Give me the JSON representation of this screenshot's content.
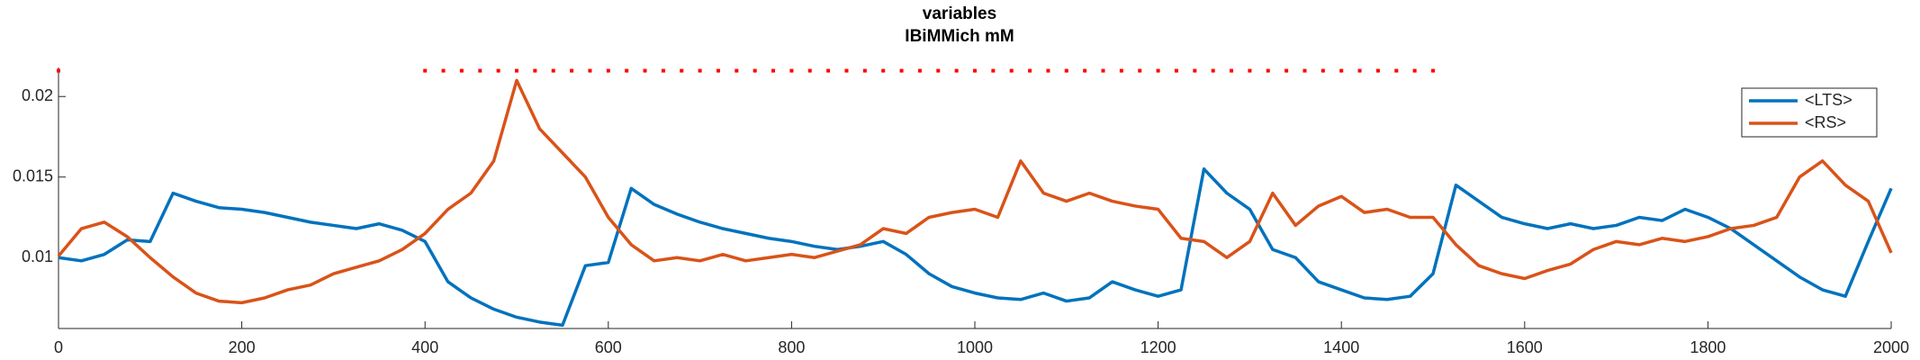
{
  "chart_data": {
    "type": "line",
    "title": "variables",
    "subtitle": "IBiMMich mM",
    "x": [
      0,
      25,
      50,
      75,
      100,
      125,
      150,
      175,
      200,
      225,
      250,
      275,
      300,
      325,
      350,
      375,
      400,
      425,
      450,
      475,
      500,
      525,
      550,
      575,
      600,
      625,
      650,
      675,
      700,
      725,
      750,
      775,
      800,
      825,
      850,
      875,
      900,
      925,
      950,
      975,
      1000,
      1025,
      1050,
      1075,
      1100,
      1125,
      1150,
      1175,
      1200,
      1225,
      1250,
      1275,
      1300,
      1325,
      1350,
      1375,
      1400,
      1425,
      1450,
      1475,
      1500,
      1525,
      1550,
      1575,
      1600,
      1625,
      1650,
      1675,
      1700,
      1725,
      1750,
      1775,
      1800,
      1825,
      1850,
      1875,
      1900,
      1925,
      1950,
      1975,
      2000
    ],
    "series": [
      {
        "name": "<LTS>",
        "color": "#0072bd",
        "values": [
          0.01,
          0.0098,
          0.0102,
          0.0111,
          0.011,
          0.014,
          0.0135,
          0.0131,
          0.013,
          0.0128,
          0.0125,
          0.0122,
          0.012,
          0.0118,
          0.0121,
          0.0117,
          0.011,
          0.0085,
          0.0075,
          0.0068,
          0.0063,
          0.006,
          0.0058,
          0.0095,
          0.0097,
          0.0143,
          0.0133,
          0.0127,
          0.0122,
          0.0118,
          0.0115,
          0.0112,
          0.011,
          0.0107,
          0.0105,
          0.0107,
          0.011,
          0.0102,
          0.009,
          0.0082,
          0.0078,
          0.0075,
          0.0074,
          0.0078,
          0.0073,
          0.0075,
          0.0085,
          0.008,
          0.0076,
          0.008,
          0.0155,
          0.014,
          0.013,
          0.0105,
          0.01,
          0.0085,
          0.008,
          0.0075,
          0.0074,
          0.0076,
          0.009,
          0.0145,
          0.0135,
          0.0125,
          0.0121,
          0.0118,
          0.0121,
          0.0118,
          0.012,
          0.0125,
          0.0123,
          0.013,
          0.0125,
          0.0118,
          0.0108,
          0.0098,
          0.0088,
          0.008,
          0.0076,
          0.011,
          0.0143
        ]
      },
      {
        "name": "<RS>",
        "color": "#d95319",
        "values": [
          0.0101,
          0.0118,
          0.0122,
          0.0113,
          0.01,
          0.0088,
          0.0078,
          0.0073,
          0.0072,
          0.0075,
          0.008,
          0.0083,
          0.009,
          0.0094,
          0.0098,
          0.0105,
          0.0115,
          0.013,
          0.014,
          0.016,
          0.021,
          0.018,
          0.0165,
          0.015,
          0.0125,
          0.0108,
          0.0098,
          0.01,
          0.0098,
          0.0102,
          0.0098,
          0.01,
          0.0102,
          0.01,
          0.0104,
          0.0108,
          0.0118,
          0.0115,
          0.0125,
          0.0128,
          0.013,
          0.0125,
          0.016,
          0.014,
          0.0135,
          0.014,
          0.0135,
          0.0132,
          0.013,
          0.0112,
          0.011,
          0.01,
          0.011,
          0.014,
          0.012,
          0.0132,
          0.0138,
          0.0128,
          0.013,
          0.0125,
          0.0125,
          0.0108,
          0.0095,
          0.009,
          0.0087,
          0.0092,
          0.0096,
          0.0105,
          0.011,
          0.0108,
          0.0112,
          0.011,
          0.0113,
          0.0118,
          0.012,
          0.0125,
          0.015,
          0.016,
          0.0145,
          0.0135,
          0.0103
        ]
      }
    ],
    "markers": {
      "color": "#ff0000",
      "x": [
        0,
        400,
        420,
        440,
        460,
        480,
        500,
        520,
        540,
        560,
        580,
        600,
        620,
        640,
        660,
        680,
        700,
        720,
        740,
        760,
        780,
        800,
        820,
        840,
        860,
        880,
        900,
        920,
        940,
        960,
        980,
        1000,
        1020,
        1040,
        1060,
        1080,
        1100,
        1120,
        1140,
        1160,
        1180,
        1200,
        1220,
        1240,
        1260,
        1280,
        1300,
        1320,
        1340,
        1360,
        1380,
        1400,
        1420,
        1440,
        1460,
        1480,
        1500
      ],
      "values": [
        0.0216,
        0.0216,
        0.0216,
        0.0216,
        0.0216,
        0.0216,
        0.0216,
        0.0216,
        0.0216,
        0.0216,
        0.0216,
        0.0216,
        0.0216,
        0.0216,
        0.0216,
        0.0216,
        0.0216,
        0.0216,
        0.0216,
        0.0216,
        0.0216,
        0.0216,
        0.0216,
        0.0216,
        0.0216,
        0.0216,
        0.0216,
        0.0216,
        0.0216,
        0.0216,
        0.0216,
        0.0216,
        0.0216,
        0.0216,
        0.0216,
        0.0216,
        0.0216,
        0.0216,
        0.0216,
        0.0216,
        0.0216,
        0.0216,
        0.0216,
        0.0216,
        0.0216,
        0.0216,
        0.0216,
        0.0216,
        0.0216,
        0.0216,
        0.0216,
        0.0216,
        0.0216,
        0.0216,
        0.0216,
        0.0216,
        0.0216
      ]
    },
    "xlim": [
      0,
      2000
    ],
    "xticks": [
      0,
      200,
      400,
      600,
      800,
      1000,
      1200,
      1400,
      1600,
      1800,
      2000
    ],
    "ylim": [
      0.0056,
      0.0218
    ],
    "yticks": [
      0.01,
      0.015,
      0.02
    ],
    "legend": "upper right",
    "grid": false
  }
}
